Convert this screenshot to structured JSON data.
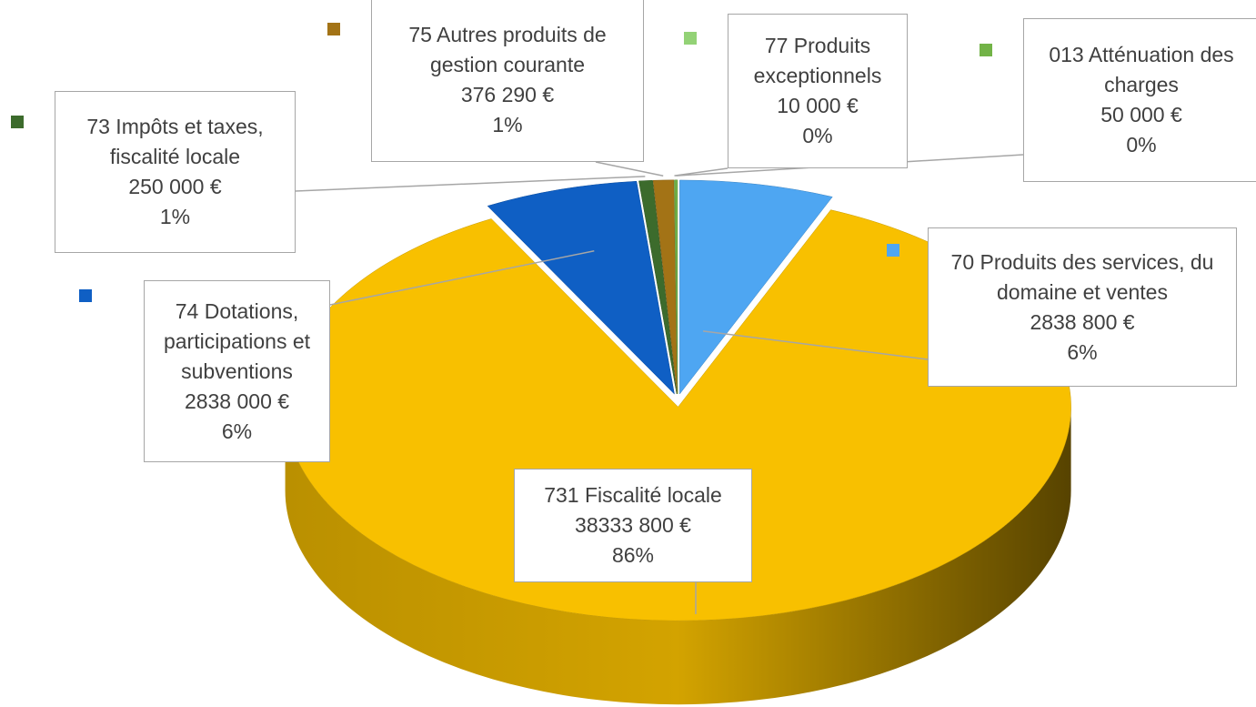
{
  "chart_data": {
    "type": "pie3d",
    "categories": [
      "70 Produits des services, du domaine et ventes",
      "731 Fiscalité locale",
      "74 Dotations, participations et subventions",
      "73 Impôts et taxes, fiscalité locale",
      "75 Autres produits de gestion courante",
      "77 Produits exceptionnels",
      "013 Atténuation des charges"
    ],
    "values": [
      2838800,
      38333800,
      2838000,
      250000,
      376290,
      10000,
      50000
    ],
    "value_labels": [
      "2838 800 €",
      "38333 800 €",
      "2838 000 €",
      "250 000 €",
      "376 290 €",
      "10 000 €",
      "50 000 €"
    ],
    "percent_labels": [
      "6%",
      "86%",
      "6%",
      "1%",
      "1%",
      "0%",
      "0%"
    ],
    "colors": [
      "#4ea6f2",
      "#f8c000",
      "#0f5fc4",
      "#3c6b2c",
      "#a37316",
      "#93d276",
      "#72b347"
    ]
  }
}
